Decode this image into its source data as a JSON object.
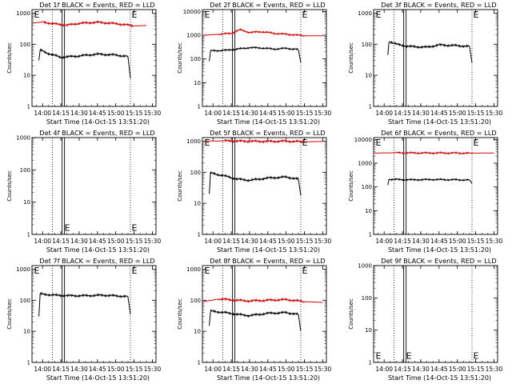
{
  "figure": {
    "colors": {
      "events": "#000000",
      "lld": "#d40000",
      "markers": "#000000"
    }
  },
  "chart_data": [
    {
      "type": "line",
      "title": "Det 1f BLACK = Events, RED = LLD",
      "xlabel": "Start Time (14-Oct-15 13:51:20)",
      "ylabel": "Counts/sec",
      "x_ticks": [
        "14:00",
        "14:15",
        "14:30",
        "14:45",
        "15:00",
        "15:15",
        "15:30"
      ],
      "x_range": [
        "13:51:20",
        "15:33:00"
      ],
      "y_scale": "log",
      "y_ticks": [
        "1",
        "10",
        "100",
        "1000"
      ],
      "ylim": [
        1,
        1300
      ],
      "series": [
        {
          "name": "Events",
          "color": "#000000",
          "x": [
            "13:57",
            "13:58",
            "14:05",
            "14:15",
            "14:30",
            "14:45",
            "15:00",
            "15:10",
            "15:12"
          ],
          "y": [
            30,
            65,
            50,
            38,
            42,
            48,
            45,
            40,
            8
          ]
        },
        {
          "name": "LLD",
          "color": "#d40000",
          "x": [
            "13:52",
            "14:00",
            "14:10",
            "14:20",
            "14:30",
            "14:45",
            "15:00",
            "15:15",
            "15:25"
          ],
          "y": [
            480,
            520,
            450,
            410,
            470,
            510,
            460,
            390,
            400
          ]
        }
      ],
      "vlines_dotted": [
        "14:08",
        "15:12"
      ],
      "vlines_double": [
        "14:17"
      ],
      "markers": [
        {
          "text": "E",
          "x": "13:53",
          "y": 1000
        },
        {
          "text": "E",
          "x": "15:13",
          "y": 1000
        }
      ]
    },
    {
      "type": "line",
      "title": "Det 2f BLACK = Events, RED = LLD",
      "xlabel": "Start Time (14-Oct-15 13:51:20)",
      "ylabel": "Counts/sec",
      "x_ticks": [
        "14:00",
        "14:15",
        "14:30",
        "14:45",
        "15:00",
        "15:15",
        "15:30"
      ],
      "x_range": [
        "13:51:20",
        "15:33:00"
      ],
      "y_scale": "log",
      "y_ticks": [
        "1",
        "10",
        "100",
        "1000",
        "10000"
      ],
      "ylim": [
        1,
        12000
      ],
      "series": [
        {
          "name": "Events",
          "color": "#000000",
          "x": [
            "13:57",
            "13:58",
            "14:10",
            "14:20",
            "14:30",
            "14:40",
            "14:50",
            "15:00",
            "15:10",
            "15:12"
          ],
          "y": [
            80,
            220,
            230,
            260,
            300,
            290,
            260,
            280,
            250,
            70
          ]
        },
        {
          "name": "LLD",
          "color": "#d40000",
          "x": [
            "13:52",
            "14:05",
            "14:15",
            "14:22",
            "14:30",
            "14:40",
            "14:50",
            "15:00",
            "15:15",
            "15:30"
          ],
          "y": [
            1000,
            1100,
            1200,
            1700,
            1300,
            1400,
            1200,
            1100,
            950,
            950
          ]
        }
      ],
      "vlines_dotted": [
        "14:08",
        "15:12"
      ],
      "vlines_double": [
        "14:17"
      ],
      "markers": [
        {
          "text": "E",
          "x": "13:53",
          "y": 10000
        },
        {
          "text": "E",
          "x": "15:13",
          "y": 10000
        }
      ]
    },
    {
      "type": "line",
      "title": "Det 3f BLACK = Events, RED = LLD",
      "xlabel": "Start Time (14-Oct-15 13:51:20)",
      "ylabel": "Counts/sec",
      "x_ticks": [
        "14:00",
        "14:15",
        "14:30",
        "14:45",
        "15:00",
        "15:15",
        "15:30"
      ],
      "x_range": [
        "13:51:20",
        "15:33:00"
      ],
      "y_scale": "log",
      "y_ticks": [
        "1",
        "10",
        "100",
        "1000"
      ],
      "ylim": [
        1,
        1300
      ],
      "series": [
        {
          "name": "Events",
          "color": "#000000",
          "x": [
            "14:03",
            "14:04",
            "14:10",
            "14:20",
            "14:35",
            "14:45",
            "15:00",
            "15:10",
            "15:12"
          ],
          "y": [
            45,
            125,
            100,
            85,
            80,
            95,
            90,
            85,
            25
          ]
        }
      ],
      "vlines_dotted": [
        "14:08",
        "15:12"
      ],
      "vlines_double": [
        "14:17"
      ],
      "markers": [
        {
          "text": "E",
          "x": "13:53",
          "y": 1000
        },
        {
          "text": "E",
          "x": "15:13",
          "y": 1000
        }
      ]
    },
    {
      "type": "line",
      "title": "Det 4f BLACK = Events, RED = LLD",
      "xlabel": "Start Time (14-Oct-15 13:51:20)",
      "ylabel": "Counts/sec",
      "x_ticks": [
        "14:00",
        "14:15",
        "14:30",
        "14:45",
        "15:00",
        "15:15",
        "15:30"
      ],
      "x_range": [
        "13:51:20",
        "15:33:00"
      ],
      "y_scale": "log",
      "y_ticks": [
        "1",
        "10",
        "100",
        "1000"
      ],
      "ylim": [
        1,
        1000
      ],
      "series": [],
      "vlines_dotted": [
        "14:08",
        "15:12"
      ],
      "vlines_double": [
        "14:17"
      ],
      "markers": [
        {
          "text": "E",
          "x": "14:18",
          "y": 1.3
        },
        {
          "text": "E",
          "x": "15:13",
          "y": 1.3
        }
      ]
    },
    {
      "type": "line",
      "title": "Det 5f BLACK = Events, RED = LLD",
      "xlabel": "Start Time (14-Oct-15 13:51:20)",
      "ylabel": "Counts/sec",
      "x_ticks": [
        "14:00",
        "14:15",
        "14:30",
        "14:45",
        "15:00",
        "15:15",
        "15:30"
      ],
      "x_range": [
        "13:51:20",
        "15:33:00"
      ],
      "y_scale": "log",
      "y_ticks": [
        "1",
        "10",
        "100",
        "1000"
      ],
      "ylim": [
        1,
        1300
      ],
      "series": [
        {
          "name": "Events",
          "color": "#000000",
          "x": [
            "13:57",
            "13:58",
            "14:10",
            "14:20",
            "14:30",
            "14:45",
            "15:00",
            "15:10",
            "15:12"
          ],
          "y": [
            20,
            95,
            75,
            60,
            55,
            65,
            70,
            60,
            18
          ]
        },
        {
          "name": "LLD",
          "color": "#d40000",
          "x": [
            "13:52",
            "14:10",
            "14:25",
            "14:45",
            "15:00",
            "15:15",
            "15:30"
          ],
          "y": [
            1000,
            1020,
            1000,
            980,
            1000,
            950,
            980
          ]
        }
      ],
      "vlines_dotted": [
        "14:08",
        "15:12"
      ],
      "vlines_double": [
        "14:17"
      ],
      "markers": [
        {
          "text": "E",
          "x": "13:53",
          "y": 1000
        },
        {
          "text": "E",
          "x": "15:13",
          "y": 1000
        }
      ]
    },
    {
      "type": "line",
      "title": "Det 6f BLACK = Events, RED = LLD",
      "xlabel": "Start Time (14-Oct-15 13:51:20)",
      "ylabel": "Counts/sec",
      "x_ticks": [
        "14:00",
        "14:15",
        "14:30",
        "14:45",
        "15:00",
        "15:15",
        "15:30"
      ],
      "x_range": [
        "13:51:20",
        "15:33:00"
      ],
      "y_scale": "log",
      "y_ticks": [
        "1",
        "10",
        "100",
        "1000",
        "10000"
      ],
      "ylim": [
        1,
        12000
      ],
      "series": [
        {
          "name": "Events",
          "color": "#000000",
          "x": [
            "14:03",
            "14:04",
            "14:20",
            "14:40",
            "15:00",
            "15:10",
            "15:12"
          ],
          "y": [
            120,
            210,
            200,
            205,
            200,
            195,
            140
          ]
        },
        {
          "name": "LLD",
          "color": "#d40000",
          "x": [
            "13:52",
            "14:10",
            "14:30",
            "14:50",
            "15:10",
            "15:30"
          ],
          "y": [
            2700,
            2750,
            2700,
            2700,
            2650,
            2700
          ]
        }
      ],
      "vlines_dotted": [
        "14:08",
        "15:12"
      ],
      "vlines_double": [
        "14:17"
      ],
      "markers": [
        {
          "text": "E",
          "x": "13:53",
          "y": 10000
        },
        {
          "text": "E",
          "x": "15:13",
          "y": 10000
        }
      ]
    },
    {
      "type": "line",
      "title": "Det 7f BLACK = Events, RED = LLD",
      "xlabel": "Start Time (14-Oct-15 13:51:20)",
      "ylabel": "Counts/sec",
      "x_ticks": [
        "14:00",
        "14:15",
        "14:30",
        "14:45",
        "15:00",
        "15:15",
        "15:30"
      ],
      "x_range": [
        "13:51:20",
        "15:33:00"
      ],
      "y_scale": "log",
      "y_ticks": [
        "1",
        "10",
        "100",
        "1000"
      ],
      "ylim": [
        1,
        1300
      ],
      "series": [
        {
          "name": "Events",
          "color": "#000000",
          "x": [
            "13:57",
            "13:58",
            "14:10",
            "14:20",
            "14:35",
            "14:50",
            "15:05",
            "15:10",
            "15:12"
          ],
          "y": [
            30,
            160,
            145,
            140,
            140,
            145,
            135,
            130,
            35
          ]
        }
      ],
      "vlines_dotted": [
        "14:08",
        "15:12"
      ],
      "vlines_double": [
        "14:17"
      ],
      "markers": [
        {
          "text": "E",
          "x": "13:53",
          "y": 1000
        },
        {
          "text": "E",
          "x": "15:13",
          "y": 1000
        }
      ]
    },
    {
      "type": "line",
      "title": "Det 8f BLACK = Events, RED = LLD",
      "xlabel": "Start Time (14-Oct-15 13:51:20)",
      "ylabel": "Counts/sec",
      "x_ticks": [
        "14:00",
        "14:15",
        "14:30",
        "14:45",
        "15:00",
        "15:15",
        "15:30"
      ],
      "x_range": [
        "13:51:20",
        "15:33:00"
      ],
      "y_scale": "log",
      "y_ticks": [
        "1",
        "10",
        "100",
        "1000"
      ],
      "ylim": [
        1,
        1300
      ],
      "series": [
        {
          "name": "Events",
          "color": "#000000",
          "x": [
            "13:57",
            "13:58",
            "14:10",
            "14:20",
            "14:30",
            "14:45",
            "15:00",
            "15:10",
            "15:12"
          ],
          "y": [
            15,
            45,
            40,
            35,
            32,
            38,
            40,
            35,
            10
          ]
        },
        {
          "name": "LLD",
          "color": "#d40000",
          "x": [
            "13:52",
            "14:05",
            "14:18",
            "14:30",
            "14:45",
            "15:00",
            "15:15",
            "15:30"
          ],
          "y": [
            90,
            110,
            100,
            95,
            100,
            105,
            90,
            85
          ]
        }
      ],
      "vlines_dotted": [
        "14:08",
        "15:12"
      ],
      "vlines_double": [
        "14:17"
      ],
      "markers": [
        {
          "text": "E",
          "x": "13:53",
          "y": 1000
        },
        {
          "text": "E",
          "x": "15:13",
          "y": 1000
        }
      ]
    },
    {
      "type": "line",
      "title": "Det 9f BLACK = Events, RED = LLD",
      "xlabel": "Start Time (14-Oct-15 13:51:20)",
      "ylabel": "Counts/sec",
      "x_ticks": [
        "14:00",
        "14:15",
        "14:30",
        "14:45",
        "15:00",
        "15:15",
        "15:30"
      ],
      "x_range": [
        "13:51:20",
        "15:33:00"
      ],
      "y_scale": "log",
      "y_ticks": [
        "1",
        "10",
        "100",
        "1000"
      ],
      "ylim": [
        1,
        1000
      ],
      "series": [],
      "vlines_dotted": [
        "14:08",
        "15:12"
      ],
      "vlines_double": [
        "14:17"
      ],
      "markers": [
        {
          "text": "E",
          "x": "13:53",
          "y": 1.3
        },
        {
          "text": "E",
          "x": "14:18",
          "y": 1.3
        },
        {
          "text": "E",
          "x": "15:13",
          "y": 1.3
        }
      ]
    }
  ]
}
